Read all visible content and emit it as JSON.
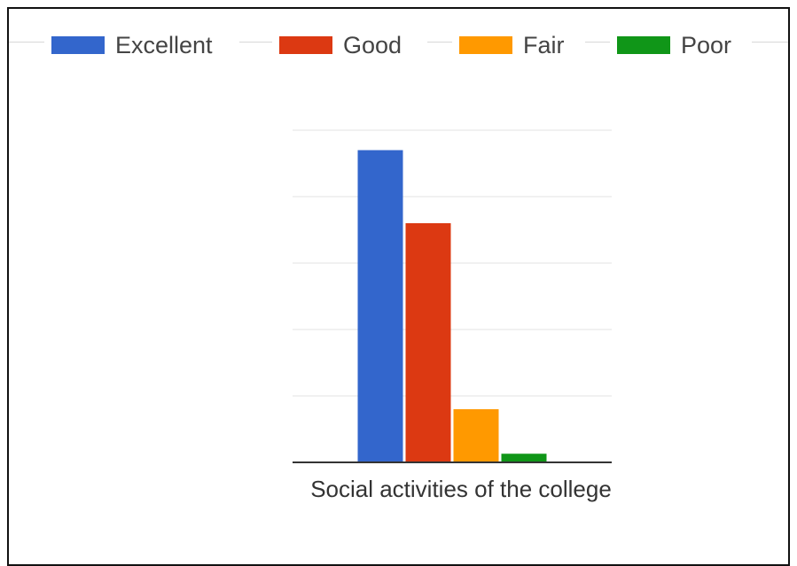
{
  "chart_data": {
    "type": "bar",
    "title": "",
    "xlabel": "",
    "ylabel": "",
    "categories": [
      "Social activities of the college"
    ],
    "series": [
      {
        "name": "Excellent",
        "color": "#3366cc",
        "values": [
          47
        ]
      },
      {
        "name": "Good",
        "color": "#dc3912",
        "values": [
          36
        ]
      },
      {
        "name": "Fair",
        "color": "#ff9900",
        "values": [
          8
        ]
      },
      {
        "name": "Poor",
        "color": "#109618",
        "values": [
          1.3
        ]
      }
    ],
    "ylim": [
      0,
      50
    ],
    "gridline_step": 10,
    "grid": true,
    "legend_position": "top"
  }
}
